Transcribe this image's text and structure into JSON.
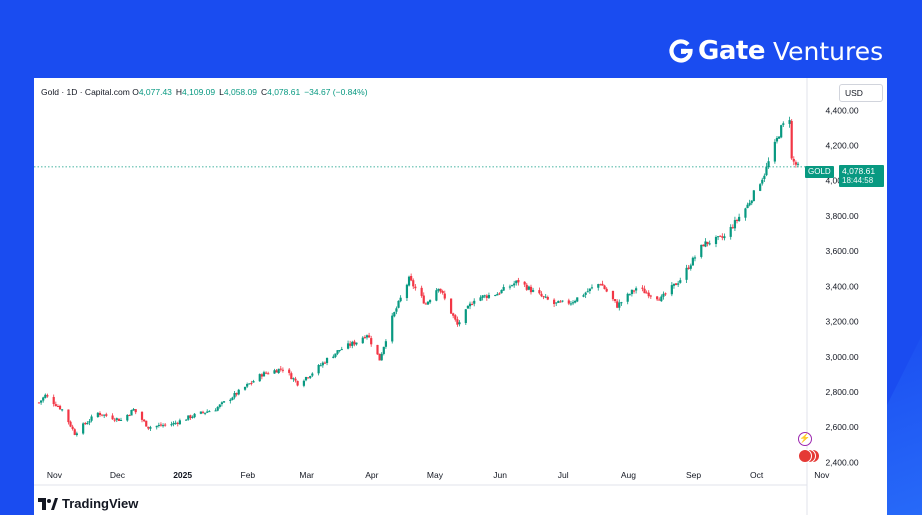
{
  "brand": {
    "name": "Gate",
    "sub": "Ventures"
  },
  "header": {
    "symbol": "Gold · 1D · Capital.com",
    "open_label": "O",
    "open": "4,077.43",
    "high_label": "H",
    "high": "4,109.09",
    "low_label": "L",
    "low": "4,058.09",
    "close_label": "C",
    "close": "4,078.61",
    "change": "−34.67 (−0.84%)"
  },
  "currency": "USD",
  "price_tag": {
    "label": "GOLD",
    "price": "4,078.61",
    "timer": "18:44:58"
  },
  "footer": {
    "logo_text": "TradingView"
  },
  "colors": {
    "up": "#089981",
    "down": "#f23645",
    "accent": "#1a4cf0"
  },
  "icons": {
    "brand": "gate-logo-icon",
    "tv": "tradingview-logo-icon",
    "event1": "lightning-event-icon",
    "event2": "us-flag-event-icon"
  },
  "chart_data": {
    "type": "candlestick",
    "title": "",
    "ylabel": "",
    "xlabel": "",
    "ylim": [
      2300,
      4470
    ],
    "yticks": [
      2400,
      2600,
      2800,
      3000,
      3200,
      3400,
      3600,
      3800,
      4000,
      4200,
      4400
    ],
    "ytick_labels": [
      "2,400.00",
      "2,600.00",
      "2,800.00",
      "3,000.00",
      "3,200.00",
      "3,400.00",
      "3,600.00",
      "3,800.00",
      "4,000.00",
      "4,200.00",
      "4,400.00"
    ],
    "xtick_labels": [
      "Nov",
      "Dec",
      "2025",
      "Feb",
      "Mar",
      "Apr",
      "May",
      "Jun",
      "Jul",
      "Aug",
      "Sep",
      "Oct",
      "Nov"
    ],
    "xtick_dates": [
      "2024-11-01",
      "2024-12-01",
      "2025-01-01",
      "2025-02-01",
      "2025-03-01",
      "2025-04-01",
      "2025-05-01",
      "2025-06-01",
      "2025-07-01",
      "2025-08-01",
      "2025-09-01",
      "2025-10-01",
      "2025-11-01"
    ],
    "date_range": [
      "2024-10-28",
      "2025-10-24"
    ],
    "last_price": 4078.61,
    "grid": false,
    "trend_points": [
      [
        "2024-10-28",
        2740
      ],
      [
        "2024-10-31",
        2780
      ],
      [
        "2024-11-08",
        2700
      ],
      [
        "2024-11-14",
        2565
      ],
      [
        "2024-11-18",
        2610
      ],
      [
        "2024-11-25",
        2680
      ],
      [
        "2024-12-06",
        2640
      ],
      [
        "2024-12-12",
        2700
      ],
      [
        "2024-12-19",
        2600
      ],
      [
        "2024-12-31",
        2620
      ],
      [
        "2025-01-08",
        2660
      ],
      [
        "2025-01-20",
        2705
      ],
      [
        "2025-01-31",
        2800
      ],
      [
        "2025-02-11",
        2900
      ],
      [
        "2025-02-21",
        2935
      ],
      [
        "2025-02-28",
        2850
      ],
      [
        "2025-03-07",
        2910
      ],
      [
        "2025-03-14",
        2985
      ],
      [
        "2025-03-20",
        3040
      ],
      [
        "2025-03-28",
        3085
      ],
      [
        "2025-04-02",
        3130
      ],
      [
        "2025-04-08",
        2985
      ],
      [
        "2025-04-14",
        3220
      ],
      [
        "2025-04-22",
        3440
      ],
      [
        "2025-04-30",
        3300
      ],
      [
        "2025-05-06",
        3400
      ],
      [
        "2025-05-15",
        3180
      ],
      [
        "2025-05-23",
        3330
      ],
      [
        "2025-06-03",
        3360
      ],
      [
        "2025-06-13",
        3430
      ],
      [
        "2025-06-20",
        3370
      ],
      [
        "2025-06-30",
        3300
      ],
      [
        "2025-07-08",
        3310
      ],
      [
        "2025-07-22",
        3420
      ],
      [
        "2025-07-30",
        3290
      ],
      [
        "2025-08-08",
        3390
      ],
      [
        "2025-08-20",
        3330
      ],
      [
        "2025-08-29",
        3440
      ],
      [
        "2025-09-09",
        3640
      ],
      [
        "2025-09-19",
        3680
      ],
      [
        "2025-09-30",
        3860
      ],
      [
        "2025-10-08",
        4040
      ],
      [
        "2025-10-16",
        4300
      ],
      [
        "2025-10-20",
        4360
      ],
      [
        "2025-10-21",
        4120
      ],
      [
        "2025-10-24",
        4078
      ]
    ]
  }
}
